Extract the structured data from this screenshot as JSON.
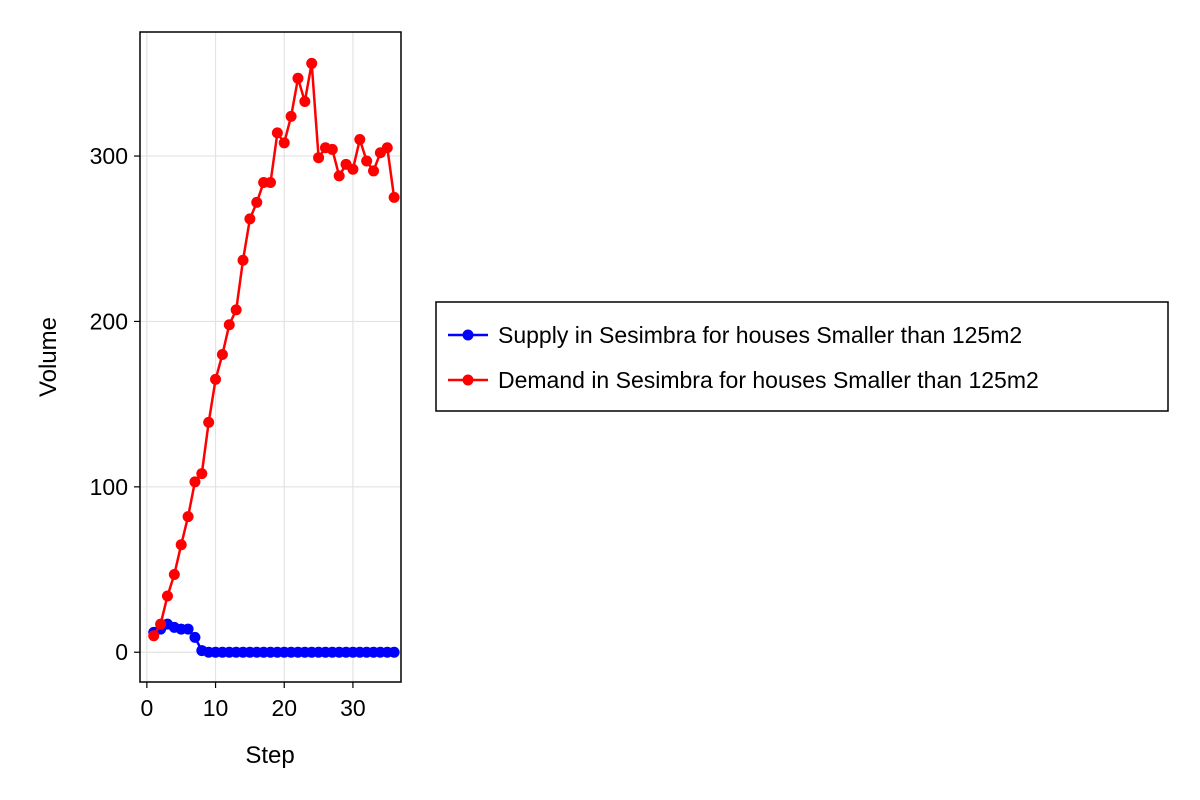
{
  "chart_data": {
    "type": "line",
    "title": "",
    "xlabel": "Step",
    "ylabel": "Volume",
    "xlim": [
      -1,
      37
    ],
    "ylim": [
      -18,
      375
    ],
    "xticks": [
      0,
      10,
      20,
      30
    ],
    "yticks": [
      0,
      100,
      200,
      300
    ],
    "grid": true,
    "legend_position": "right",
    "series": [
      {
        "name": "Supply in Sesimbra for houses Smaller than 125m2",
        "color": "#0000ff",
        "x": [
          1,
          2,
          3,
          4,
          5,
          6,
          7,
          8,
          9,
          10,
          11,
          12,
          13,
          14,
          15,
          16,
          17,
          18,
          19,
          20,
          21,
          22,
          23,
          24,
          25,
          26,
          27,
          28,
          29,
          30,
          31,
          32,
          33,
          34,
          35,
          36
        ],
        "values": [
          12,
          14,
          17,
          15,
          14,
          14,
          9,
          1,
          0,
          0,
          0,
          0,
          0,
          0,
          0,
          0,
          0,
          0,
          0,
          0,
          0,
          0,
          0,
          0,
          0,
          0,
          0,
          0,
          0,
          0,
          0,
          0,
          0,
          0,
          0,
          0
        ]
      },
      {
        "name": "Demand in Sesimbra for houses Smaller than 125m2",
        "color": "#ff0000",
        "x": [
          1,
          2,
          3,
          4,
          5,
          6,
          7,
          8,
          9,
          10,
          11,
          12,
          13,
          14,
          15,
          16,
          17,
          18,
          19,
          20,
          21,
          22,
          23,
          24,
          25,
          26,
          27,
          28,
          29,
          30,
          31,
          32,
          33,
          34,
          35,
          36
        ],
        "values": [
          10,
          17,
          34,
          47,
          65,
          82,
          103,
          108,
          139,
          165,
          180,
          198,
          207,
          237,
          262,
          272,
          284,
          284,
          314,
          308,
          324,
          347,
          333,
          356,
          299,
          305,
          304,
          288,
          295,
          292,
          310,
          297,
          291,
          302,
          305,
          275
        ]
      }
    ]
  }
}
